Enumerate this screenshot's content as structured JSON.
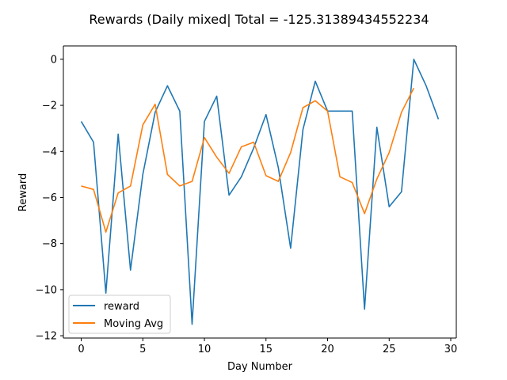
{
  "chart_data": {
    "type": "line",
    "title": "Rewards (Daily mixed| Total = -125.31389434552234",
    "xlabel": "Day Number",
    "ylabel": "Reward",
    "xlim": [
      -1.45,
      30.45
    ],
    "ylim": [
      -12.1,
      0.58
    ],
    "xticks": [
      0,
      5,
      10,
      15,
      20,
      25,
      30
    ],
    "xtick_labels": [
      "0",
      "5",
      "10",
      "15",
      "20",
      "25",
      "30"
    ],
    "yticks": [
      0,
      -2,
      -4,
      -6,
      -8,
      -10,
      -12
    ],
    "ytick_labels": [
      "0",
      "−2",
      "−4",
      "−6",
      "−8",
      "−10",
      "−12"
    ],
    "grid": false,
    "legend_position": "lower-left",
    "series": [
      {
        "name": "reward",
        "color": "#1f77b4",
        "x": [
          0,
          1,
          2,
          3,
          4,
          5,
          6,
          7,
          8,
          9,
          10,
          11,
          12,
          13,
          14,
          15,
          16,
          17,
          18,
          19,
          20,
          21,
          22,
          23,
          24,
          25,
          26,
          27,
          28,
          29
        ],
        "values": [
          -2.7,
          -3.6,
          -10.15,
          -3.25,
          -9.15,
          -5.0,
          -2.3,
          -1.15,
          -2.25,
          -11.5,
          -2.7,
          -1.6,
          -5.9,
          -5.1,
          -3.85,
          -2.4,
          -4.7,
          -8.2,
          -3.05,
          -0.95,
          -2.25,
          -2.25,
          -2.25,
          -10.85,
          -2.95,
          -6.4,
          -5.75,
          0.0,
          -1.15,
          -2.6
        ]
      },
      {
        "name": "Moving Avg",
        "color": "#ff7f0e",
        "x": [
          0,
          1,
          2,
          3,
          4,
          5,
          6,
          7,
          8,
          9,
          10,
          11,
          12,
          13,
          14,
          15,
          16,
          17,
          18,
          19,
          20,
          21,
          22,
          23,
          24,
          25,
          26,
          27
        ],
        "values": [
          -5.5,
          -5.65,
          -7.5,
          -5.8,
          -5.5,
          -2.85,
          -1.95,
          -5.0,
          -5.5,
          -5.3,
          -3.4,
          -4.25,
          -4.95,
          -3.8,
          -3.6,
          -5.05,
          -5.3,
          -4.05,
          -2.1,
          -1.8,
          -2.25,
          -5.1,
          -5.35,
          -6.7,
          -5.2,
          -4.05,
          -2.3,
          -1.25
        ]
      }
    ]
  }
}
